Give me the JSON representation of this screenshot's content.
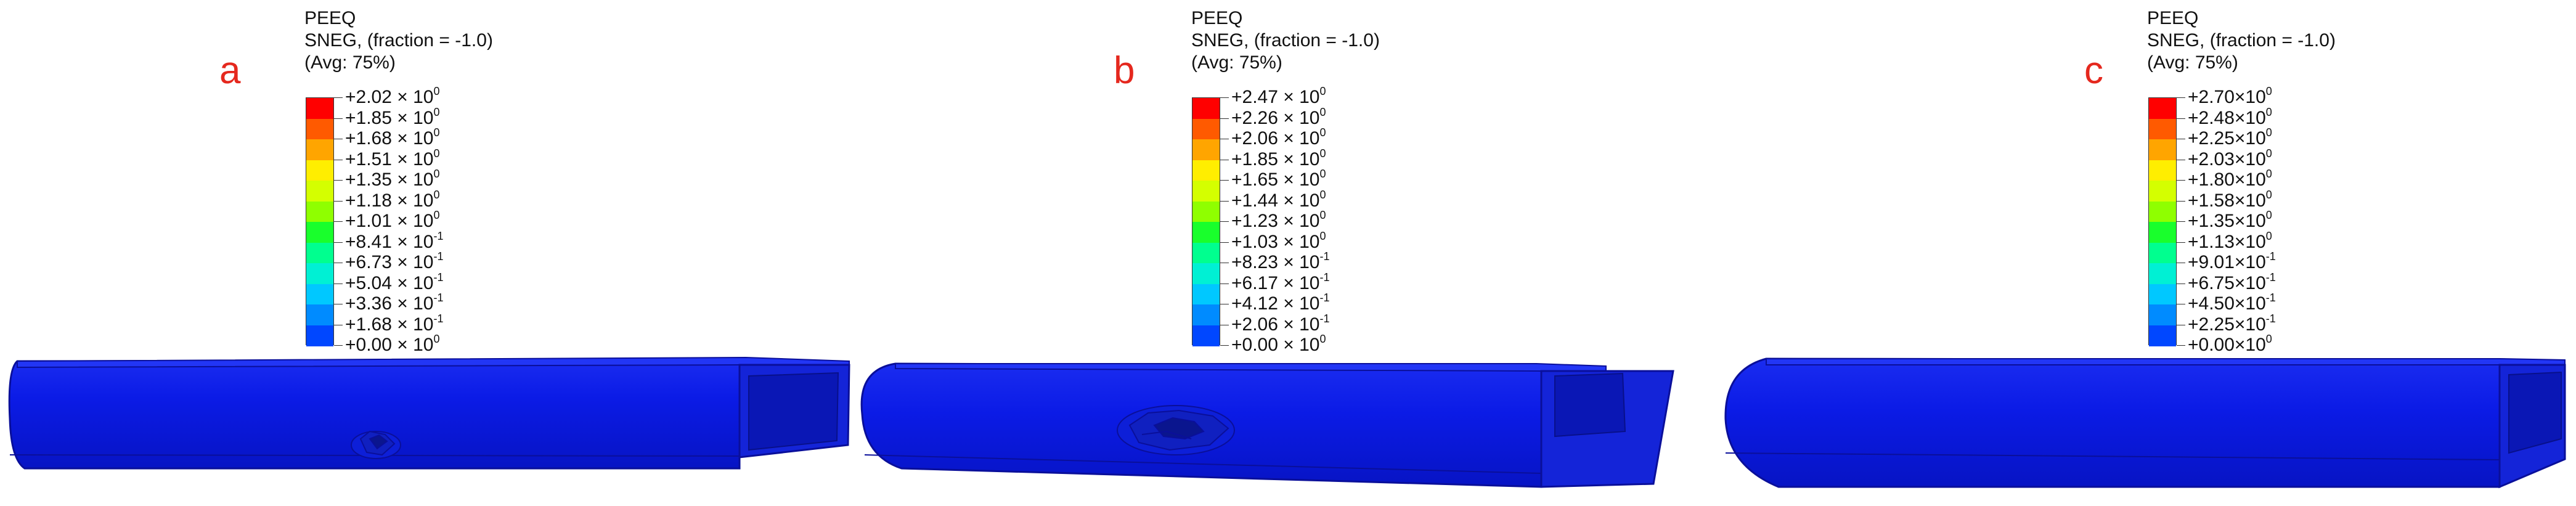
{
  "colors": {
    "panel_letter": "#e5281e",
    "contour": [
      "#0000ff",
      "#0047ff",
      "#008bff",
      "#00c8ff",
      "#00f0d4",
      "#00ff8f",
      "#19ff2c",
      "#8fff00",
      "#d4ff00",
      "#ffee00",
      "#ffa500",
      "#ff5a00",
      "#ff0000"
    ],
    "model_body": "#0b1be6",
    "model_edge": "#0a0f9a"
  },
  "panels": [
    {
      "letter": "a",
      "title": [
        "PEEQ",
        "SNEG, (fraction = -1.0)",
        "(Avg: 75%)"
      ],
      "levels": [
        {
          "mantissa": "+2.02 × 10",
          "exp": "0"
        },
        {
          "mantissa": "+1.85 × 10",
          "exp": "0"
        },
        {
          "mantissa": "+1.68 × 10",
          "exp": "0"
        },
        {
          "mantissa": "+1.51 × 10",
          "exp": "0"
        },
        {
          "mantissa": "+1.35 × 10",
          "exp": "0"
        },
        {
          "mantissa": "+1.18 × 10",
          "exp": "0"
        },
        {
          "mantissa": "+1.01 × 10",
          "exp": "0"
        },
        {
          "mantissa": "+8.41 × 10",
          "exp": "-1"
        },
        {
          "mantissa": "+6.73 × 10",
          "exp": "-1"
        },
        {
          "mantissa": "+5.04 × 10",
          "exp": "-1"
        },
        {
          "mantissa": "+3.36 × 10",
          "exp": "-1"
        },
        {
          "mantissa": "+1.68 × 10",
          "exp": "-1"
        },
        {
          "mantissa": "+0.00 × 10",
          "exp": "0"
        }
      ]
    },
    {
      "letter": "b",
      "title": [
        "PEEQ",
        "SNEG, (fraction = -1.0)",
        "(Avg: 75%)"
      ],
      "levels": [
        {
          "mantissa": "+2.47 × 10",
          "exp": "0"
        },
        {
          "mantissa": "+2.26 × 10",
          "exp": "0"
        },
        {
          "mantissa": "+2.06 × 10",
          "exp": "0"
        },
        {
          "mantissa": "+1.85 × 10",
          "exp": "0"
        },
        {
          "mantissa": "+1.65 × 10",
          "exp": "0"
        },
        {
          "mantissa": "+1.44 × 10",
          "exp": "0"
        },
        {
          "mantissa": "+1.23 × 10",
          "exp": "0"
        },
        {
          "mantissa": "+1.03 × 10",
          "exp": "0"
        },
        {
          "mantissa": "+8.23 × 10",
          "exp": "-1"
        },
        {
          "mantissa": "+6.17 × 10",
          "exp": "-1"
        },
        {
          "mantissa": "+4.12 × 10",
          "exp": "-1"
        },
        {
          "mantissa": "+2.06 × 10",
          "exp": "-1"
        },
        {
          "mantissa": "+0.00 × 10",
          "exp": "0"
        }
      ]
    },
    {
      "letter": "c",
      "title": [
        "PEEQ",
        "SNEG, (fraction = -1.0)",
        "(Avg: 75%)"
      ],
      "levels": [
        {
          "mantissa": "+2.70×10",
          "exp": "0"
        },
        {
          "mantissa": "+2.48×10",
          "exp": "0"
        },
        {
          "mantissa": "+2.25×10",
          "exp": "0"
        },
        {
          "mantissa": "+2.03×10",
          "exp": "0"
        },
        {
          "mantissa": "+1.80×10",
          "exp": "0"
        },
        {
          "mantissa": "+1.58×10",
          "exp": "0"
        },
        {
          "mantissa": "+1.35×10",
          "exp": "0"
        },
        {
          "mantissa": "+1.13×10",
          "exp": "0"
        },
        {
          "mantissa": "+9.01×10",
          "exp": "-1"
        },
        {
          "mantissa": "+6.75×10",
          "exp": "-1"
        },
        {
          "mantissa": "+4.50×10",
          "exp": "-1"
        },
        {
          "mantissa": "+2.25×10",
          "exp": "-1"
        },
        {
          "mantissa": "+0.00×10",
          "exp": "0"
        }
      ]
    }
  ]
}
